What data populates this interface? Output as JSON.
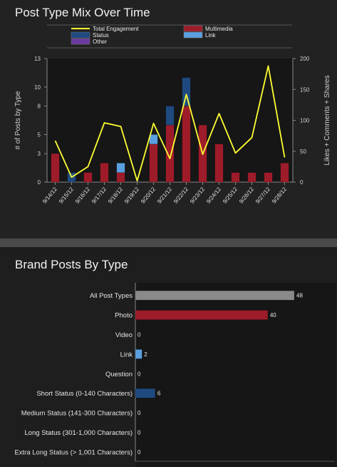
{
  "chart_data": [
    {
      "type": "bar",
      "subtype": "stacked bar with line overlay",
      "title": "Post Type Mix Over Time",
      "categories": [
        "9/14/12",
        "9/15/12",
        "9/16/12",
        "9/17/12",
        "9/18/12",
        "9/19/12",
        "9/20/12",
        "9/21/12",
        "9/22/12",
        "9/23/12",
        "9/24/12",
        "9/25/12",
        "9/26/12",
        "9/27/12",
        "9/28/12"
      ],
      "series": [
        {
          "name": "Multimedia",
          "axis": "left",
          "values": [
            3,
            0,
            1,
            2,
            1,
            0,
            4,
            6,
            8,
            6,
            4,
            1,
            1,
            1,
            2
          ],
          "color": "#9e1c2a"
        },
        {
          "name": "Status",
          "axis": "left",
          "values": [
            0,
            1,
            0,
            0,
            0,
            0,
            0,
            2,
            3,
            0,
            0,
            0,
            0,
            0,
            0
          ],
          "color": "#1e4a80"
        },
        {
          "name": "Link",
          "axis": "left",
          "values": [
            0,
            0,
            0,
            0,
            1,
            0,
            1,
            0,
            0,
            0,
            0,
            0,
            0,
            0,
            0
          ],
          "color": "#5aa0e0"
        },
        {
          "name": "Other",
          "axis": "left",
          "values": [
            0,
            0,
            0,
            0,
            0,
            0,
            0,
            0,
            0,
            0,
            0,
            0,
            0,
            0,
            0
          ],
          "color": "#6a3aa0"
        },
        {
          "name": "Total Engagement",
          "axis": "right",
          "type": "line",
          "values": [
            67,
            8,
            25,
            96,
            90,
            2,
            95,
            38,
            142,
            45,
            111,
            47,
            72,
            188,
            40
          ],
          "color": "#ffff33"
        }
      ],
      "ylabel": "# of Posts by Type",
      "y2label": "Likes + Comments + Shares",
      "ylim": [
        0,
        13
      ],
      "yticks": [
        0,
        3,
        5,
        8,
        10,
        13
      ],
      "y2lim": [
        0,
        200
      ],
      "y2ticks": [
        0,
        50,
        100,
        150,
        200
      ],
      "legend": {
        "position": "top",
        "entries": [
          "Total Engagement",
          "Multimedia",
          "Status",
          "Link",
          "Other"
        ]
      },
      "grid": false
    },
    {
      "type": "bar",
      "orientation": "horizontal",
      "title": "Brand Posts By Type",
      "categories": [
        "All Post Types",
        "Photo",
        "Video",
        "Link",
        "Question",
        "Short Status (0-140 Characters)",
        "Medium Status (141-300 Characters)",
        "Long Status (301-1,000 Characters)",
        "Extra Long Status (> 1,001 Characters)"
      ],
      "values": [
        48,
        40,
        0,
        2,
        0,
        6,
        0,
        0,
        0
      ],
      "value_labels": [
        "48",
        "40",
        "0",
        "2",
        "0",
        "6",
        "0",
        "0",
        "0"
      ],
      "colors": [
        "#8a8a8a",
        "#9e1c2a",
        "#9e1c2a",
        "#5aa0e0",
        "#5aa0e0",
        "#1e4a80",
        "#1e4a80",
        "#1e4a80",
        "#1e4a80"
      ],
      "xlim": [
        0,
        48
      ],
      "grid": false
    }
  ]
}
